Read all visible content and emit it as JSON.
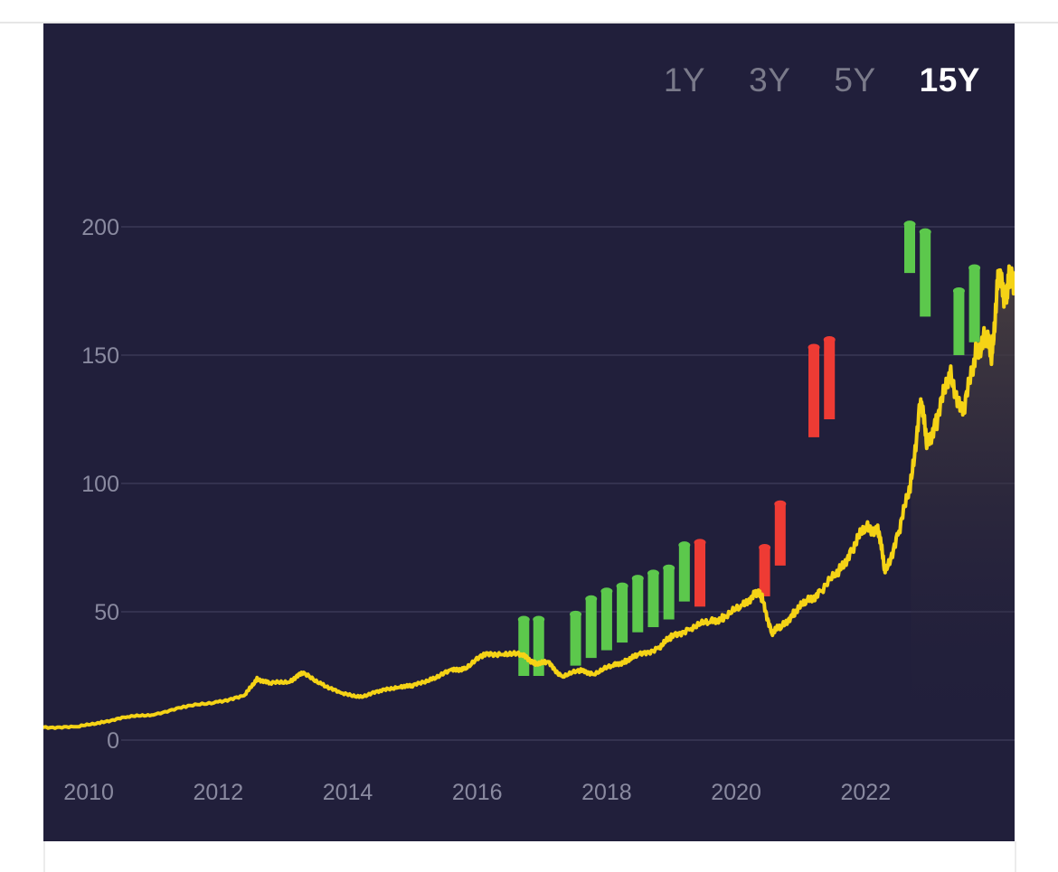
{
  "range_selector": {
    "options": [
      "1Y",
      "3Y",
      "5Y",
      "15Y"
    ],
    "active": "15Y"
  },
  "colors": {
    "background": "#211f3b",
    "price_line": "#f5d316",
    "beat": "#5cc84c",
    "miss": "#ee3b34",
    "grid": "#34324f",
    "tick_text": "#8a8aa0"
  },
  "chart_data": {
    "type": "line",
    "title": "",
    "xlabel": "",
    "ylabel": "",
    "x_ticks": [
      "2010",
      "2012",
      "2014",
      "2016",
      "2018",
      "2020",
      "2022"
    ],
    "y_ticks": [
      0,
      50,
      100,
      150,
      200
    ],
    "xlim": [
      2009.3,
      2024.3
    ],
    "ylim": [
      0,
      200
    ],
    "grid": true,
    "legend": "none",
    "series": [
      {
        "type": "line",
        "area_fill": true,
        "points": [
          [
            2009.3,
            5
          ],
          [
            2009.8,
            5
          ],
          [
            2010.2,
            7
          ],
          [
            2010.6,
            9
          ],
          [
            2011.0,
            10
          ],
          [
            2011.5,
            13
          ],
          [
            2012.0,
            15
          ],
          [
            2012.4,
            17
          ],
          [
            2012.6,
            24
          ],
          [
            2012.8,
            22
          ],
          [
            2013.1,
            23
          ],
          [
            2013.3,
            26
          ],
          [
            2013.6,
            22
          ],
          [
            2013.9,
            18
          ],
          [
            2014.2,
            17
          ],
          [
            2014.5,
            19
          ],
          [
            2014.8,
            21
          ],
          [
            2015.0,
            21
          ],
          [
            2015.3,
            24
          ],
          [
            2015.6,
            27
          ],
          [
            2015.8,
            28
          ],
          [
            2016.1,
            33
          ],
          [
            2016.4,
            34
          ],
          [
            2016.7,
            33
          ],
          [
            2016.9,
            30
          ],
          [
            2017.1,
            30
          ],
          [
            2017.3,
            25
          ],
          [
            2017.6,
            27
          ],
          [
            2017.8,
            26
          ],
          [
            2018.1,
            29
          ],
          [
            2018.3,
            31
          ],
          [
            2018.5,
            33
          ],
          [
            2018.8,
            36
          ],
          [
            2019.0,
            40
          ],
          [
            2019.3,
            44
          ],
          [
            2019.6,
            46
          ],
          [
            2019.8,
            48
          ],
          [
            2020.1,
            52
          ],
          [
            2020.3,
            58
          ],
          [
            2020.4,
            55
          ],
          [
            2020.55,
            42
          ],
          [
            2020.7,
            44
          ],
          [
            2020.9,
            50
          ],
          [
            2021.1,
            54
          ],
          [
            2021.3,
            58
          ],
          [
            2021.6,
            66
          ],
          [
            2021.8,
            75
          ],
          [
            2022.0,
            83
          ],
          [
            2022.2,
            82
          ],
          [
            2022.3,
            65
          ],
          [
            2022.5,
            80
          ],
          [
            2022.7,
            100
          ],
          [
            2022.85,
            133
          ],
          [
            2022.95,
            115
          ],
          [
            2023.1,
            125
          ],
          [
            2023.3,
            143
          ],
          [
            2023.5,
            127
          ],
          [
            2023.7,
            150
          ],
          [
            2023.85,
            158
          ],
          [
            2023.95,
            150
          ],
          [
            2024.05,
            182
          ],
          [
            2024.15,
            172
          ],
          [
            2024.22,
            180
          ],
          [
            2024.3,
            178
          ]
        ]
      }
    ],
    "earnings_markers": [
      {
        "x": 2016.72,
        "low": 25,
        "high": 47,
        "result": "beat"
      },
      {
        "x": 2016.95,
        "low": 25,
        "high": 47,
        "result": "beat"
      },
      {
        "x": 2017.52,
        "low": 29,
        "high": 49,
        "result": "beat"
      },
      {
        "x": 2017.76,
        "low": 32,
        "high": 55,
        "result": "beat"
      },
      {
        "x": 2018.0,
        "low": 35,
        "high": 58,
        "result": "beat"
      },
      {
        "x": 2018.24,
        "low": 38,
        "high": 60,
        "result": "beat"
      },
      {
        "x": 2018.48,
        "low": 42,
        "high": 63,
        "result": "beat"
      },
      {
        "x": 2018.72,
        "low": 44,
        "high": 65,
        "result": "beat"
      },
      {
        "x": 2018.96,
        "low": 47,
        "high": 67,
        "result": "beat"
      },
      {
        "x": 2019.2,
        "low": 54,
        "high": 76,
        "result": "beat"
      },
      {
        "x": 2019.44,
        "low": 52,
        "high": 77,
        "result": "miss"
      },
      {
        "x": 2020.44,
        "low": 56,
        "high": 75,
        "result": "miss"
      },
      {
        "x": 2020.68,
        "low": 68,
        "high": 92,
        "result": "miss"
      },
      {
        "x": 2021.2,
        "low": 118,
        "high": 153,
        "result": "miss"
      },
      {
        "x": 2021.44,
        "low": 125,
        "high": 156,
        "result": "miss"
      },
      {
        "x": 2022.68,
        "low": 182,
        "high": 201,
        "result": "beat"
      },
      {
        "x": 2022.92,
        "low": 165,
        "high": 198,
        "result": "beat"
      },
      {
        "x": 2023.44,
        "low": 150,
        "high": 175,
        "result": "beat"
      },
      {
        "x": 2023.68,
        "low": 155,
        "high": 184,
        "result": "beat"
      }
    ]
  }
}
